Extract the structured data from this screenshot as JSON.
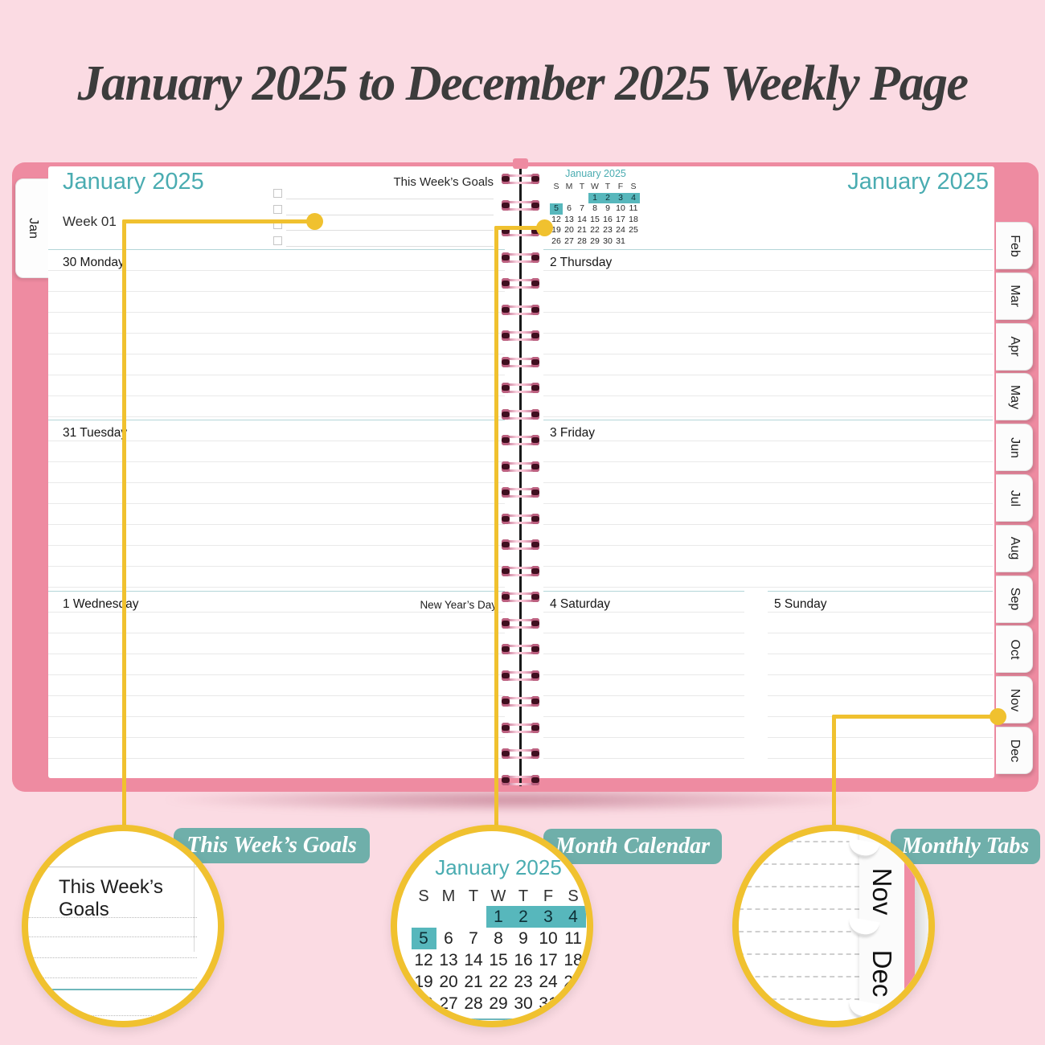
{
  "page_title": "January 2025 to December 2025 Weekly Page",
  "planner": {
    "left_tab": "Jan",
    "right_tabs": [
      "Feb",
      "Mar",
      "Apr",
      "May",
      "Jun",
      "Jul",
      "Aug",
      "Sep",
      "Oct",
      "Nov",
      "Dec"
    ],
    "left_page": {
      "month_header": "January 2025",
      "week_label": "Week 01",
      "goals_title": "This Week’s Goals",
      "goal_lines": 4,
      "days": [
        {
          "date": "30",
          "name": "Monday",
          "note": ""
        },
        {
          "date": "31",
          "name": "Tuesday",
          "note": ""
        },
        {
          "date": "1",
          "name": "Wednesday",
          "note": "New Year’s Day"
        }
      ]
    },
    "right_page": {
      "month_header": "January 2025",
      "days": [
        {
          "date": "2",
          "name": "Thursday",
          "note": ""
        },
        {
          "date": "3",
          "name": "Friday",
          "note": ""
        }
      ],
      "weekend_days": [
        {
          "date": "4",
          "name": "Saturday",
          "note": ""
        },
        {
          "date": "5",
          "name": "Sunday",
          "note": ""
        }
      ]
    }
  },
  "mini_calendar": {
    "title": "January 2025",
    "day_headers": [
      "S",
      "M",
      "T",
      "W",
      "T",
      "F",
      "S"
    ],
    "weeks": [
      [
        "",
        "",
        "",
        "1",
        "2",
        "3",
        "4"
      ],
      [
        "5",
        "6",
        "7",
        "8",
        "9",
        "10",
        "11"
      ],
      [
        "12",
        "13",
        "14",
        "15",
        "16",
        "17",
        "18"
      ],
      [
        "19",
        "20",
        "21",
        "22",
        "23",
        "24",
        "25"
      ],
      [
        "26",
        "27",
        "28",
        "29",
        "30",
        "31",
        ""
      ]
    ],
    "highlighted_dates": [
      "1",
      "2",
      "3",
      "4",
      "5"
    ]
  },
  "callouts": [
    {
      "badge": "This Week’s Goals",
      "preview_title": "This Week’s Goals"
    },
    {
      "badge": "Month Calendar"
    },
    {
      "badge": "Monthly Tabs",
      "tabs": [
        "Nov",
        "Dec"
      ]
    }
  ],
  "colors": {
    "accent_teal": "#4aacb1",
    "badge_teal": "#6fafaa",
    "highlight_teal": "#57b7bc",
    "cover_pink": "#ee8ba1",
    "background_pink": "#fbdbe3",
    "callout_yellow": "#f0c12f"
  }
}
